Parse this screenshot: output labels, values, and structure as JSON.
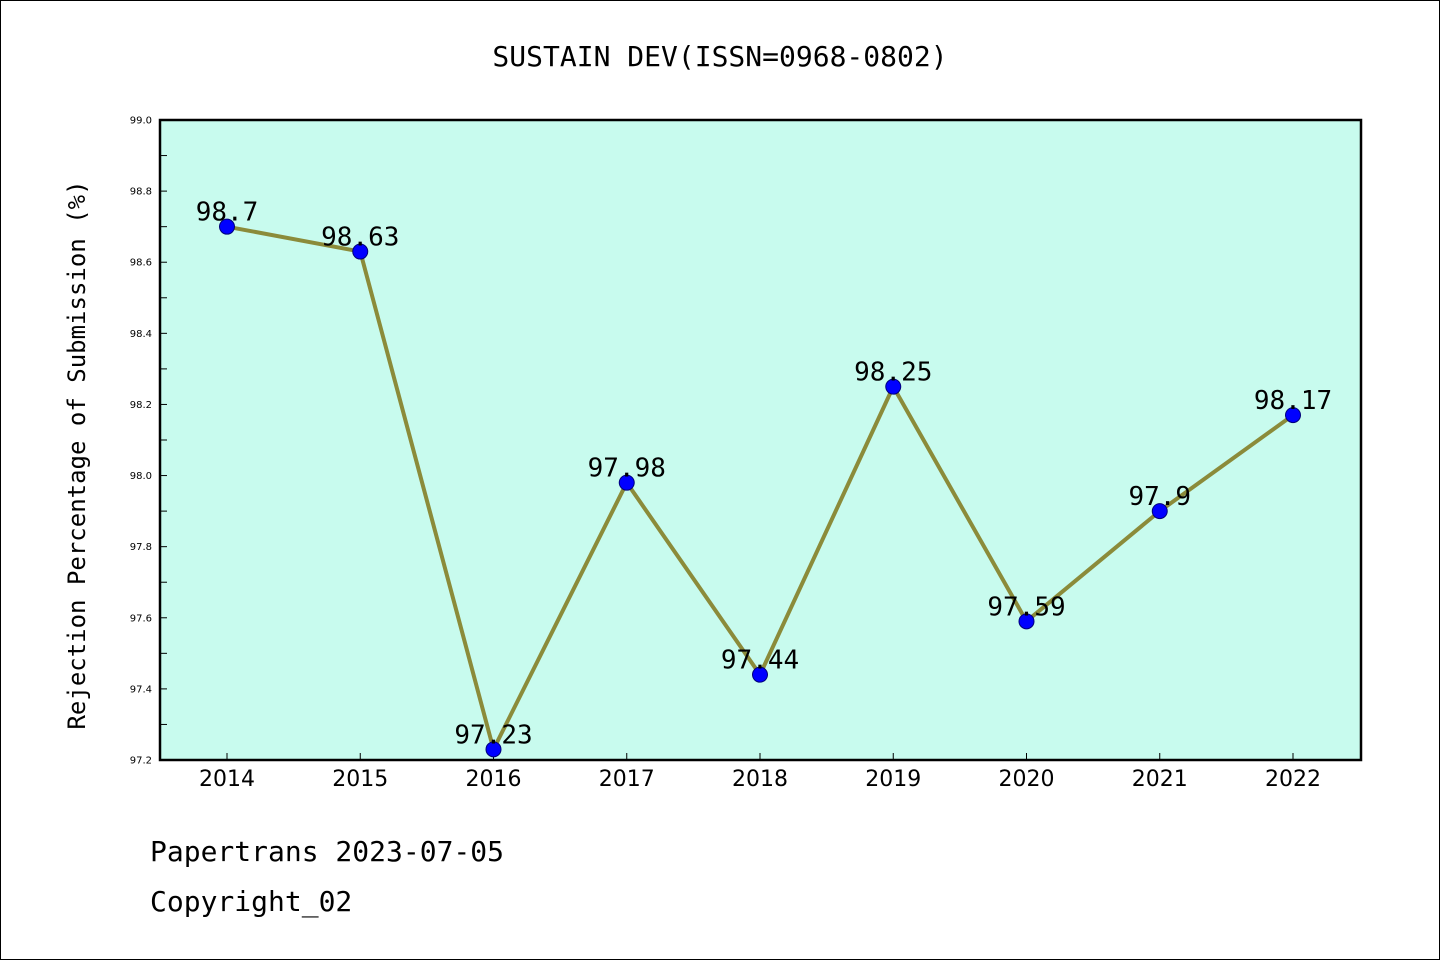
{
  "chart_data": {
    "type": "line",
    "title": "SUSTAIN DEV(ISSN=0968-0802)",
    "xlabel": "",
    "ylabel": "Rejection Percentage of Submission (%)",
    "categories": [
      "2014",
      "2015",
      "2016",
      "2017",
      "2018",
      "2019",
      "2020",
      "2021",
      "2022"
    ],
    "series": [
      {
        "values": [
          98.7,
          98.63,
          97.23,
          97.98,
          97.44,
          98.25,
          97.59,
          97.9,
          98.17
        ]
      }
    ],
    "data_labels": [
      "98.7",
      "98.63",
      "97.23",
      "97.98",
      "97.44",
      "98.25",
      "97.59",
      "97.9",
      "98.17"
    ],
    "ylim": [
      97.2,
      99.0
    ],
    "yticks": [
      "97.2",
      "97.4",
      "97.6",
      "97.8",
      "98.0",
      "98.2",
      "98.4",
      "98.6",
      "98.8",
      "99.0"
    ],
    "grid": false,
    "colors": {
      "plot_background": "#c8fbee",
      "line": "#8b8b3a",
      "marker": "#0000ff"
    }
  },
  "footer": {
    "line1": "Papertrans 2023-07-05",
    "line2": "Copyright_02"
  }
}
